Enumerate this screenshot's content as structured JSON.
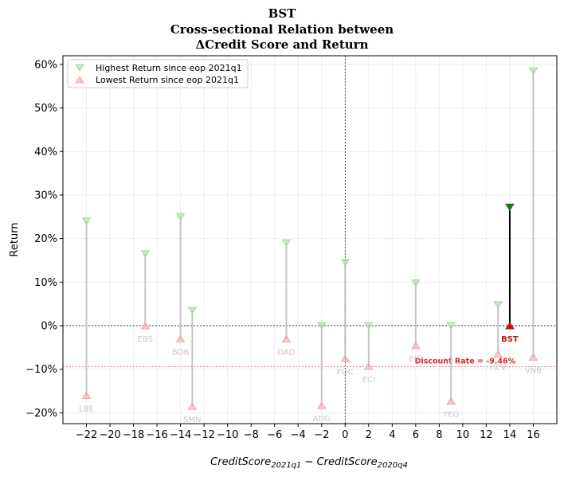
{
  "chart_data": {
    "type": "scatter",
    "title_lines": [
      "BST",
      "Cross-sectional Relation between",
      "ΔCredit Score and Return"
    ],
    "xlabel": "CreditScore_{2021q1} − CreditScore_{2020q4}",
    "xlabel_parts": {
      "a": "CreditScore",
      "a_sub": "2021q1",
      "op": " − ",
      "b": "CreditScore",
      "b_sub": "2020q4"
    },
    "ylabel": "Return",
    "xlim": [
      -24,
      18
    ],
    "ylim": [
      -0.225,
      0.62
    ],
    "xticks": [
      -22,
      -20,
      -18,
      -16,
      -14,
      -12,
      -10,
      -8,
      -6,
      -4,
      -2,
      0,
      2,
      4,
      6,
      8,
      10,
      12,
      14,
      16
    ],
    "xtick_labels": [
      "−22",
      "−20",
      "−18",
      "−16",
      "−14",
      "−12",
      "−10",
      "−8",
      "−6",
      "−4",
      "−2",
      "0",
      "2",
      "4",
      "6",
      "8",
      "10",
      "12",
      "14",
      "16"
    ],
    "yticks": [
      -0.2,
      -0.1,
      0,
      0.1,
      0.2,
      0.3,
      0.4,
      0.5,
      0.6
    ],
    "ytick_labels": [
      "−20%",
      "−10%",
      "0%",
      "10%",
      "20%",
      "30%",
      "40%",
      "50%",
      "60%"
    ],
    "grid": true,
    "legend_position": "top-left",
    "legend": [
      "Highest Return since eop 2021q1",
      "Lowest Return since eop 2021q1"
    ],
    "colors": {
      "high": "#a8d8a0",
      "low": "#f0a8a8",
      "focus_high": "#1a7a1a",
      "focus_low": "#cc1111",
      "line": "#bbbbbb",
      "focus_line": "#000000",
      "discount": "#d62728"
    },
    "discount_rate": -0.0946,
    "discount_label": "Discount Rate = -9.46%",
    "points": [
      {
        "label": "LBE",
        "x": -22,
        "high": 0.24,
        "low": -0.16
      },
      {
        "label": "EBS",
        "x": -17,
        "high": 0.165,
        "low": 0.0
      },
      {
        "label": "BDB",
        "x": -14,
        "high": 0.25,
        "low": -0.03
      },
      {
        "label": "SMN",
        "x": -13,
        "high": 0.035,
        "low": -0.185
      },
      {
        "label": "DAD",
        "x": -5,
        "high": 0.19,
        "low": -0.03
      },
      {
        "label": "ADG",
        "x": -2,
        "high": 0.0,
        "low": -0.183
      },
      {
        "label": "FOC",
        "x": 0,
        "high": 0.145,
        "low": -0.075
      },
      {
        "label": "ECI",
        "x": 2,
        "high": 0.0,
        "low": -0.093
      },
      {
        "label": "EID",
        "x": 6,
        "high": 0.098,
        "low": -0.045
      },
      {
        "label": "YEG",
        "x": 9,
        "high": 0.0,
        "low": -0.173
      },
      {
        "label": "HEV",
        "x": 13,
        "high": 0.048,
        "low": -0.065
      },
      {
        "label": "BST",
        "x": 14,
        "high": 0.272,
        "low": 0.0,
        "focus": true
      },
      {
        "label": "VNB",
        "x": 16,
        "high": 0.585,
        "low": -0.072
      }
    ]
  }
}
